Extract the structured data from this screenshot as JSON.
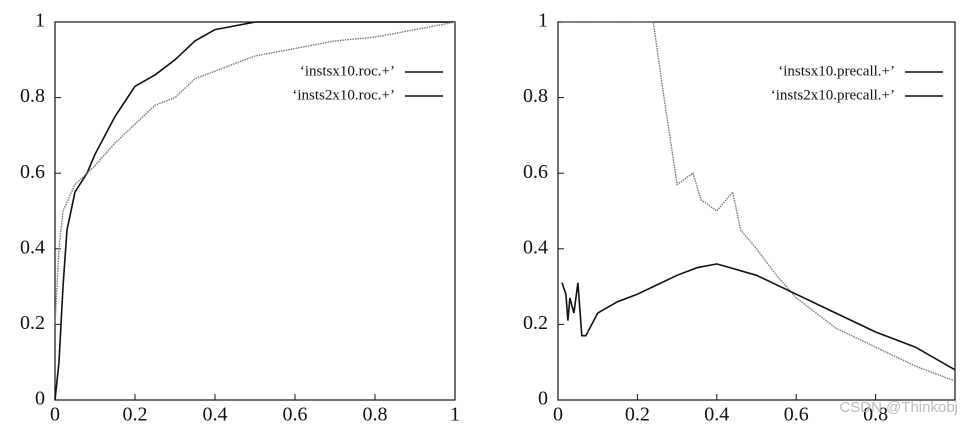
{
  "chart_data": [
    {
      "type": "line",
      "xlim": [
        0,
        1
      ],
      "ylim": [
        0,
        1
      ],
      "xticks": [
        0,
        0.2,
        0.4,
        0.6,
        0.8,
        1
      ],
      "yticks": [
        0,
        0.2,
        0.4,
        0.6,
        0.8,
        1
      ],
      "legend": "upper right",
      "series": [
        {
          "name": "‘instsx10.roc.+’",
          "color": "#111111",
          "style": "solid",
          "x": [
            0,
            0.01,
            0.02,
            0.03,
            0.05,
            0.08,
            0.1,
            0.15,
            0.2,
            0.25,
            0.3,
            0.35,
            0.4,
            0.5,
            1
          ],
          "values": [
            0,
            0.1,
            0.3,
            0.45,
            0.55,
            0.6,
            0.65,
            0.75,
            0.83,
            0.86,
            0.9,
            0.95,
            0.98,
            1,
            1
          ]
        },
        {
          "name": "‘insts2x10.roc.+’",
          "color": "#777777",
          "style": "dotted",
          "x": [
            0,
            0.01,
            0.02,
            0.05,
            0.1,
            0.15,
            0.2,
            0.25,
            0.3,
            0.35,
            0.4,
            0.5,
            0.6,
            0.7,
            0.8,
            0.9,
            1
          ],
          "values": [
            0.2,
            0.4,
            0.5,
            0.57,
            0.62,
            0.68,
            0.73,
            0.78,
            0.8,
            0.85,
            0.87,
            0.91,
            0.93,
            0.95,
            0.96,
            0.98,
            1
          ]
        }
      ]
    },
    {
      "type": "line",
      "xlim": [
        0,
        1
      ],
      "ylim": [
        0,
        1
      ],
      "xticks": [
        0,
        0.2,
        0.4,
        0.6,
        0.8
      ],
      "yticks": [
        0,
        0.2,
        0.4,
        0.6,
        0.8,
        1
      ],
      "legend": "upper right",
      "series": [
        {
          "name": "‘instsx10.precall.+’",
          "color": "#777777",
          "style": "dotted",
          "x": [
            0.01,
            0.24,
            0.26,
            0.3,
            0.34,
            0.36,
            0.4,
            0.44,
            0.46,
            0.5,
            0.55,
            0.6,
            0.7,
            0.8,
            0.9,
            1
          ],
          "values": [
            1,
            1,
            0.85,
            0.57,
            0.6,
            0.53,
            0.5,
            0.55,
            0.45,
            0.4,
            0.33,
            0.27,
            0.19,
            0.14,
            0.09,
            0.05
          ]
        },
        {
          "name": "‘insts2x10.precall.+’",
          "color": "#111111",
          "style": "solid",
          "x": [
            0.01,
            0.02,
            0.025,
            0.03,
            0.04,
            0.05,
            0.06,
            0.07,
            0.1,
            0.15,
            0.2,
            0.24,
            0.3,
            0.35,
            0.4,
            0.5,
            0.6,
            0.7,
            0.8,
            0.9,
            1
          ],
          "values": [
            0.31,
            0.28,
            0.21,
            0.27,
            0.23,
            0.31,
            0.17,
            0.17,
            0.23,
            0.26,
            0.28,
            0.3,
            0.33,
            0.35,
            0.36,
            0.33,
            0.28,
            0.23,
            0.18,
            0.14,
            0.08
          ]
        }
      ]
    }
  ],
  "watermark": "CSDN @Thinkobj"
}
